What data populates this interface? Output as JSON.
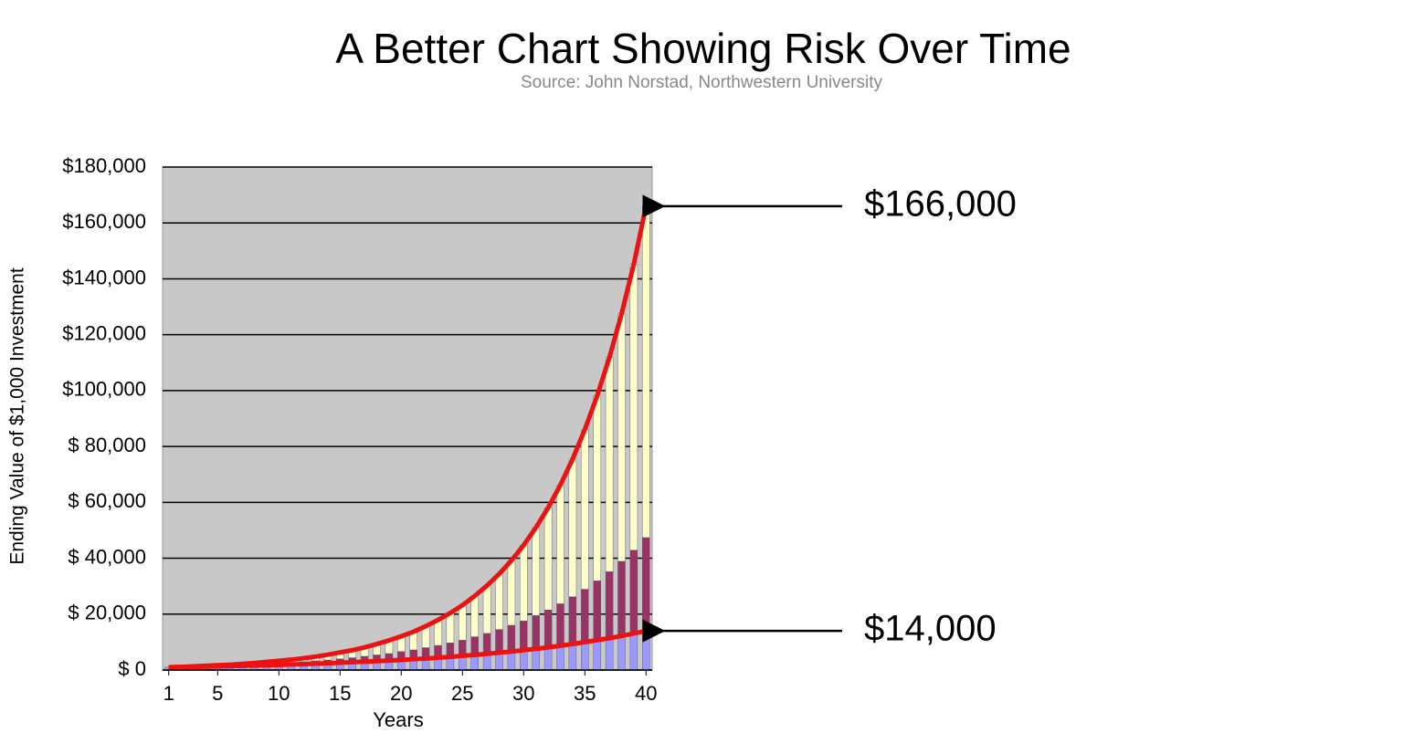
{
  "chart_data": {
    "type": "stacked-bar-line",
    "title": "A Better Chart Showing Risk Over Time",
    "subtitle": "Source: John Norstad, Northwestern University",
    "xlabel": "Years",
    "ylabel": "Ending Value of $1,000 Investment",
    "x": [
      1,
      2,
      3,
      4,
      5,
      6,
      7,
      8,
      9,
      10,
      11,
      12,
      13,
      14,
      15,
      16,
      17,
      18,
      19,
      20,
      21,
      22,
      23,
      24,
      25,
      26,
      27,
      28,
      29,
      30,
      31,
      32,
      33,
      34,
      35,
      36,
      37,
      38,
      39,
      40
    ],
    "xlim": [
      0.5,
      40.5
    ],
    "xticks": [
      1,
      5,
      10,
      15,
      20,
      25,
      30,
      35,
      40
    ],
    "ylim": [
      0,
      180000
    ],
    "yticks": [
      {
        "value": 0,
        "label": "$ 0"
      },
      {
        "value": 20000,
        "label": "$ 20,000"
      },
      {
        "value": 40000,
        "label": "$ 40,000"
      },
      {
        "value": 60000,
        "label": "$ 60,000"
      },
      {
        "value": 80000,
        "label": "$ 80,000"
      },
      {
        "value": 100000,
        "label": "$100,000"
      },
      {
        "value": 120000,
        "label": "$120,000"
      },
      {
        "value": 140000,
        "label": "$140,000"
      },
      {
        "value": 160000,
        "label": "$160,000"
      },
      {
        "value": 180000,
        "label": "$180,000"
      }
    ],
    "grid": true,
    "plot_background": "#c8c8c8",
    "series": [
      {
        "kind": "bar",
        "color": "#9999ff",
        "values": [
          1000,
          1100,
          1100,
          1200,
          1300,
          1400,
          1500,
          1600,
          1700,
          1800,
          2000,
          2100,
          2300,
          2400,
          2600,
          2800,
          3000,
          3200,
          3400,
          3600,
          3900,
          4100,
          4400,
          4700,
          5100,
          5400,
          5800,
          6200,
          6600,
          7100,
          7600,
          8100,
          8700,
          9300,
          10000,
          10700,
          11400,
          12200,
          13100,
          14000
        ]
      },
      {
        "kind": "bar",
        "color": "#993366",
        "values": [
          0,
          0,
          100,
          100,
          200,
          200,
          300,
          400,
          500,
          600,
          700,
          900,
          1000,
          1200,
          1400,
          1600,
          1900,
          2200,
          2500,
          3000,
          3300,
          3900,
          4400,
          5000,
          5600,
          6500,
          7300,
          8300,
          9400,
          10500,
          11900,
          13400,
          15000,
          16900,
          18900,
          21200,
          23800,
          26700,
          29800,
          33400
        ]
      },
      {
        "kind": "bar",
        "color": "#ffffcc",
        "values": [
          0,
          0,
          100,
          200,
          200,
          300,
          400,
          500,
          700,
          900,
          1000,
          1200,
          1500,
          1900,
          2300,
          2700,
          3200,
          3900,
          4700,
          5500,
          6500,
          7700,
          9100,
          10700,
          12500,
          14600,
          17100,
          19900,
          23200,
          27100,
          31500,
          36600,
          42500,
          49300,
          57200,
          66200,
          76600,
          88600,
          102400,
          118600
        ]
      },
      {
        "kind": "line",
        "color": "#ee1111",
        "values": [
          1000,
          1100,
          1300,
          1500,
          1700,
          1900,
          2200,
          2500,
          2900,
          3300,
          3700,
          4200,
          4800,
          5500,
          6300,
          7100,
          8100,
          9300,
          10600,
          12100,
          13700,
          15700,
          17900,
          20400,
          23200,
          26500,
          30200,
          34400,
          39200,
          44700,
          51000,
          58100,
          66200,
          75500,
          86100,
          98100,
          111800,
          127500,
          145300,
          166000
        ]
      },
      {
        "kind": "line",
        "color": "#ee1111",
        "values": [
          1000,
          1100,
          1100,
          1200,
          1300,
          1400,
          1500,
          1600,
          1700,
          1800,
          2000,
          2100,
          2300,
          2400,
          2600,
          2800,
          3000,
          3200,
          3400,
          3600,
          3900,
          4100,
          4400,
          4700,
          5100,
          5400,
          5800,
          6200,
          6600,
          7100,
          7600,
          8100,
          8700,
          9300,
          10000,
          10700,
          11400,
          12200,
          13100,
          14000
        ]
      }
    ],
    "annotations": [
      {
        "text": "$166,000",
        "value": 166000
      },
      {
        "text": "$14,000",
        "value": 14000
      }
    ]
  }
}
